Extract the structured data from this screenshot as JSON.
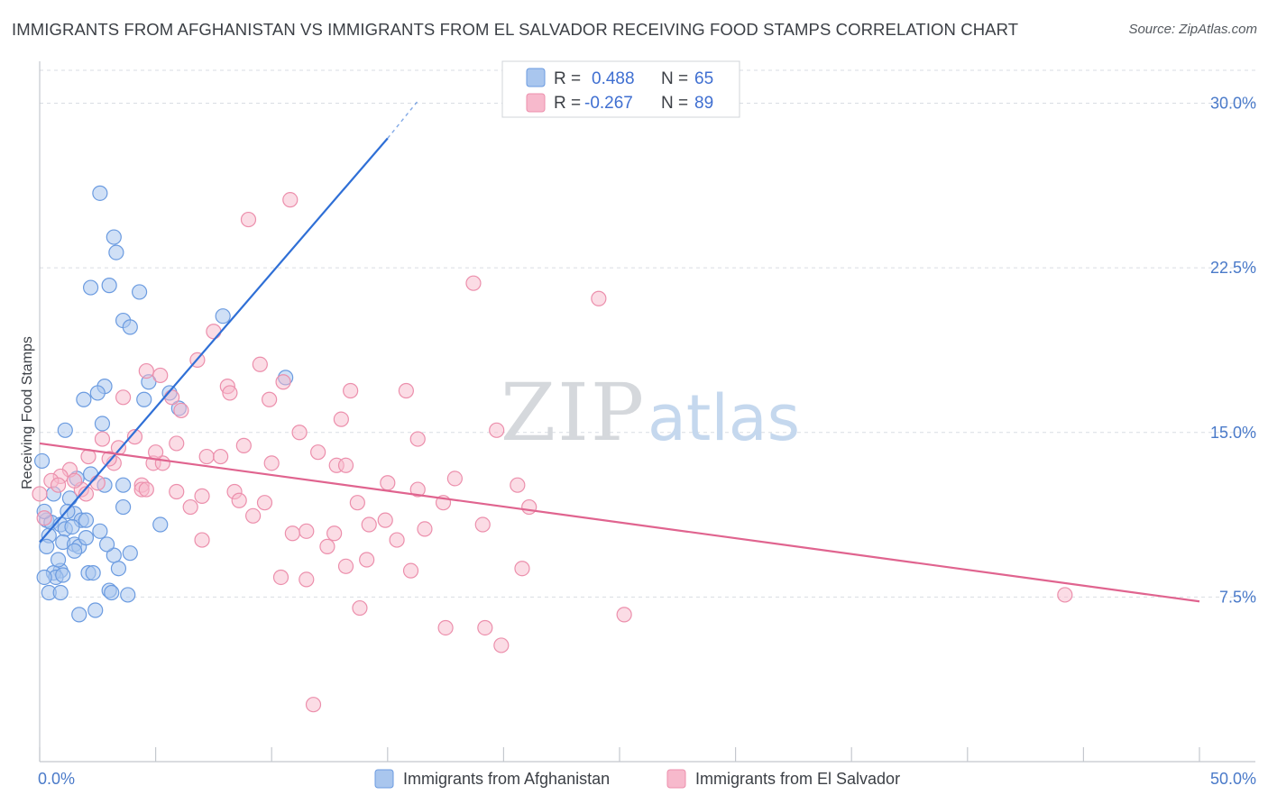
{
  "title": "IMMIGRANTS FROM AFGHANISTAN VS IMMIGRANTS FROM EL SALVADOR RECEIVING FOOD STAMPS CORRELATION CHART",
  "source": "Source: ZipAtlas.com",
  "watermark": {
    "zip": "ZIP",
    "atlas": "atlas"
  },
  "colors": {
    "blue_fill": "#a9c6ee",
    "blue_stroke": "#6b9be0",
    "blue_line": "#2f6fd6",
    "pink_fill": "#f7b9cc",
    "pink_stroke": "#ec8fac",
    "pink_line": "#e0648f",
    "grid": "#d9dde3",
    "tick_text": "#4a7ac9"
  },
  "legend": {
    "rows": [
      {
        "r_label": "R =",
        "r_value": "0.488",
        "n_label": "N =",
        "n_value": "65"
      },
      {
        "r_label": "R =",
        "r_value": "-0.267",
        "n_label": "N =",
        "n_value": "89"
      }
    ]
  },
  "chart_data": {
    "type": "scatter",
    "title": "IMMIGRANTS FROM AFGHANISTAN VS IMMIGRANTS FROM EL SALVADOR RECEIVING FOOD STAMPS CORRELATION CHART",
    "xlabel": "",
    "ylabel": "Receiving Food Stamps",
    "xlim": [
      0,
      50
    ],
    "ylim": [
      0,
      31.5
    ],
    "x_tick_labels": [
      "0.0%",
      "50.0%"
    ],
    "y_ticks": [
      7.5,
      15.0,
      22.5,
      30.0
    ],
    "y_tick_labels": [
      "7.5%",
      "15.0%",
      "22.5%",
      "30.0%"
    ],
    "grid": true,
    "series": [
      {
        "name": "Immigrants from Afghanistan",
        "color": "blue",
        "R": 0.488,
        "N": 65,
        "trend": {
          "x0": 0,
          "y0": 10.0,
          "x1": 15,
          "y1": 28.4,
          "dash_to_x": 16.3,
          "dash_to_y": 30.1
        },
        "points": [
          [
            2.6,
            25.9
          ],
          [
            3.2,
            23.9
          ],
          [
            3.3,
            23.2
          ],
          [
            2.2,
            21.6
          ],
          [
            3.0,
            21.7
          ],
          [
            4.3,
            21.4
          ],
          [
            3.6,
            20.1
          ],
          [
            3.9,
            19.8
          ],
          [
            7.9,
            20.3
          ],
          [
            10.6,
            17.5
          ],
          [
            4.7,
            17.3
          ],
          [
            2.8,
            17.1
          ],
          [
            2.5,
            16.8
          ],
          [
            1.9,
            16.5
          ],
          [
            4.5,
            16.5
          ],
          [
            5.6,
            16.8
          ],
          [
            6.0,
            16.1
          ],
          [
            2.7,
            15.4
          ],
          [
            1.1,
            15.1
          ],
          [
            0.1,
            13.7
          ],
          [
            2.2,
            13.1
          ],
          [
            2.8,
            12.6
          ],
          [
            3.6,
            12.6
          ],
          [
            1.3,
            12.0
          ],
          [
            3.6,
            11.6
          ],
          [
            1.5,
            11.3
          ],
          [
            1.8,
            11.0
          ],
          [
            2.0,
            11.0
          ],
          [
            0.3,
            11.0
          ],
          [
            0.5,
            10.9
          ],
          [
            0.9,
            10.8
          ],
          [
            1.1,
            10.6
          ],
          [
            1.4,
            10.7
          ],
          [
            2.6,
            10.5
          ],
          [
            5.2,
            10.8
          ],
          [
            0.4,
            10.3
          ],
          [
            1.0,
            10.0
          ],
          [
            1.5,
            9.9
          ],
          [
            1.7,
            9.8
          ],
          [
            0.3,
            9.8
          ],
          [
            1.5,
            9.6
          ],
          [
            3.2,
            9.4
          ],
          [
            3.9,
            9.5
          ],
          [
            0.9,
            8.7
          ],
          [
            0.6,
            8.6
          ],
          [
            0.7,
            8.4
          ],
          [
            2.1,
            8.6
          ],
          [
            2.3,
            8.6
          ],
          [
            0.2,
            8.4
          ],
          [
            1.0,
            8.5
          ],
          [
            0.4,
            7.7
          ],
          [
            0.9,
            7.7
          ],
          [
            3.0,
            7.8
          ],
          [
            3.1,
            7.7
          ],
          [
            3.8,
            7.6
          ],
          [
            2.4,
            6.9
          ],
          [
            1.7,
            6.7
          ],
          [
            0.8,
            9.2
          ],
          [
            2.0,
            10.2
          ],
          [
            1.2,
            11.4
          ],
          [
            0.6,
            12.2
          ],
          [
            2.9,
            9.9
          ],
          [
            1.6,
            12.9
          ],
          [
            0.2,
            11.4
          ],
          [
            3.4,
            8.8
          ]
        ]
      },
      {
        "name": "Immigrants from El Salvador",
        "color": "pink",
        "R": -0.267,
        "N": 89,
        "trend": {
          "x0": 0,
          "y0": 14.5,
          "x1": 50,
          "y1": 7.3
        },
        "points": [
          [
            10.8,
            25.6
          ],
          [
            9.0,
            24.7
          ],
          [
            18.7,
            21.8
          ],
          [
            24.1,
            21.1
          ],
          [
            7.5,
            19.6
          ],
          [
            6.8,
            18.3
          ],
          [
            9.5,
            18.1
          ],
          [
            4.6,
            17.8
          ],
          [
            5.2,
            17.6
          ],
          [
            10.5,
            17.3
          ],
          [
            8.1,
            17.1
          ],
          [
            8.2,
            16.8
          ],
          [
            13.4,
            16.9
          ],
          [
            15.8,
            16.9
          ],
          [
            3.6,
            16.6
          ],
          [
            5.7,
            16.6
          ],
          [
            6.1,
            16.0
          ],
          [
            9.9,
            16.5
          ],
          [
            13.0,
            15.6
          ],
          [
            19.7,
            15.1
          ],
          [
            11.2,
            15.0
          ],
          [
            16.3,
            14.7
          ],
          [
            4.1,
            14.8
          ],
          [
            2.7,
            14.7
          ],
          [
            5.9,
            14.5
          ],
          [
            8.8,
            14.4
          ],
          [
            3.4,
            14.3
          ],
          [
            12.0,
            14.1
          ],
          [
            7.2,
            13.9
          ],
          [
            7.8,
            13.9
          ],
          [
            2.1,
            13.9
          ],
          [
            3.2,
            13.6
          ],
          [
            4.9,
            13.6
          ],
          [
            5.3,
            13.6
          ],
          [
            10.0,
            13.6
          ],
          [
            12.8,
            13.5
          ],
          [
            13.2,
            13.5
          ],
          [
            1.3,
            13.3
          ],
          [
            0.9,
            13.0
          ],
          [
            0.5,
            12.8
          ],
          [
            2.5,
            12.7
          ],
          [
            4.4,
            12.6
          ],
          [
            17.9,
            12.9
          ],
          [
            15.0,
            12.7
          ],
          [
            20.6,
            12.6
          ],
          [
            0.8,
            12.6
          ],
          [
            1.8,
            12.4
          ],
          [
            4.4,
            12.4
          ],
          [
            4.6,
            12.4
          ],
          [
            5.9,
            12.3
          ],
          [
            8.4,
            12.3
          ],
          [
            16.3,
            12.4
          ],
          [
            2.0,
            12.2
          ],
          [
            8.6,
            11.9
          ],
          [
            9.7,
            11.8
          ],
          [
            17.4,
            11.8
          ],
          [
            13.7,
            11.8
          ],
          [
            21.1,
            11.6
          ],
          [
            6.5,
            11.6
          ],
          [
            7.0,
            12.1
          ],
          [
            9.2,
            11.2
          ],
          [
            0.2,
            11.1
          ],
          [
            14.9,
            11.0
          ],
          [
            14.2,
            10.8
          ],
          [
            19.1,
            10.8
          ],
          [
            16.6,
            10.6
          ],
          [
            11.5,
            10.5
          ],
          [
            10.9,
            10.4
          ],
          [
            12.7,
            10.4
          ],
          [
            7.0,
            10.1
          ],
          [
            15.4,
            10.1
          ],
          [
            12.4,
            9.8
          ],
          [
            14.1,
            9.2
          ],
          [
            13.2,
            8.9
          ],
          [
            20.8,
            8.8
          ],
          [
            16.0,
            8.7
          ],
          [
            10.4,
            8.4
          ],
          [
            11.5,
            8.3
          ],
          [
            13.8,
            7.0
          ],
          [
            25.2,
            6.7
          ],
          [
            17.5,
            6.1
          ],
          [
            19.2,
            6.1
          ],
          [
            19.9,
            5.3
          ],
          [
            11.8,
            2.6
          ],
          [
            44.2,
            7.6
          ],
          [
            5.0,
            14.1
          ],
          [
            0.0,
            12.2
          ],
          [
            1.5,
            12.8
          ],
          [
            3.0,
            13.8
          ]
        ]
      }
    ]
  },
  "bottom_legend": [
    {
      "label": "Immigrants from Afghanistan",
      "color": "blue"
    },
    {
      "label": "Immigrants from El Salvador",
      "color": "pink"
    }
  ]
}
